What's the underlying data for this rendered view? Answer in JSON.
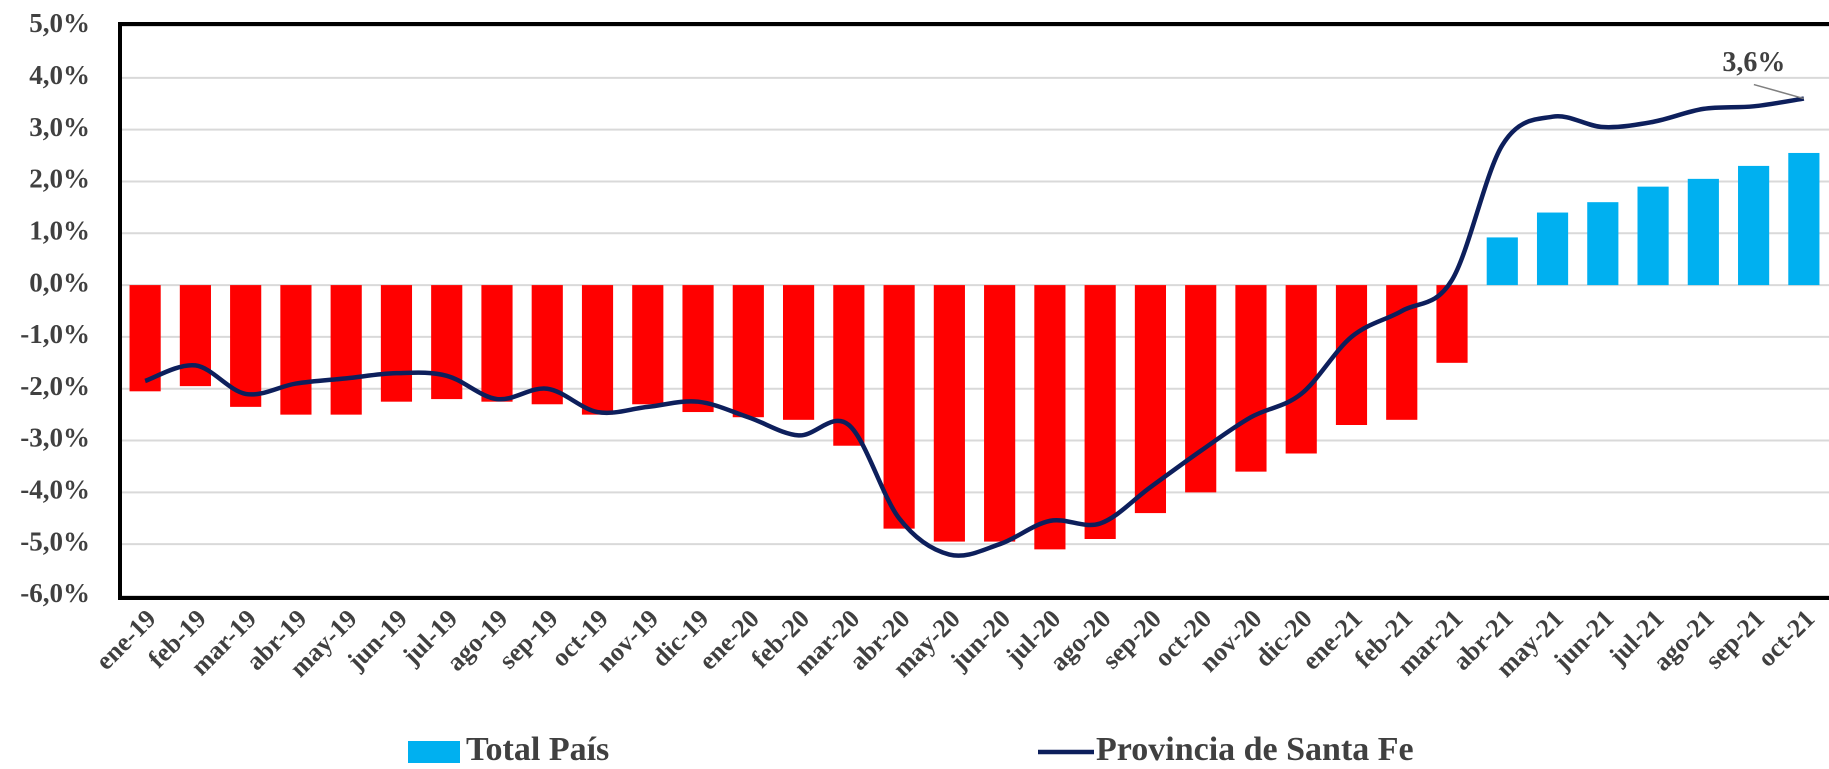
{
  "chart_data": {
    "type": "bar_line",
    "categories": [
      "ene-19",
      "feb-19",
      "mar-19",
      "abr-19",
      "may-19",
      "jun-19",
      "jul-19",
      "ago-19",
      "sep-19",
      "oct-19",
      "nov-19",
      "dic-19",
      "ene-20",
      "feb-20",
      "mar-20",
      "abr-20",
      "may-20",
      "jun-20",
      "jul-20",
      "ago-20",
      "sep-20",
      "oct-20",
      "nov-20",
      "dic-20",
      "ene-21",
      "feb-21",
      "mar-21",
      "abr-21",
      "may-21",
      "jun-21",
      "jul-21",
      "ago-21",
      "sep-21",
      "oct-21"
    ],
    "series": [
      {
        "name": "Total País",
        "type": "bar",
        "color": "#00b0f0",
        "negative_color": "#ff0000",
        "values": [
          -2.05,
          -1.95,
          -2.35,
          -2.5,
          -2.5,
          -2.25,
          -2.2,
          -2.25,
          -2.3,
          -2.5,
          -2.3,
          -2.45,
          -2.55,
          -2.6,
          -3.1,
          -4.7,
          -4.95,
          -4.95,
          -5.1,
          -4.9,
          -4.4,
          -4.0,
          -3.6,
          -3.25,
          -2.7,
          -2.6,
          -1.5,
          0.92,
          1.4,
          1.6,
          1.9,
          2.05,
          2.3,
          2.55
        ]
      },
      {
        "name": "Provincia de Santa Fe",
        "type": "line",
        "color": "#0d1f5c",
        "values": [
          -1.85,
          -1.55,
          -2.1,
          -1.9,
          -1.8,
          -1.7,
          -1.75,
          -2.2,
          -2.0,
          -2.45,
          -2.35,
          -2.25,
          -2.55,
          -2.9,
          -2.7,
          -4.5,
          -5.2,
          -5.0,
          -4.55,
          -4.6,
          -3.9,
          -3.2,
          -2.55,
          -2.1,
          -1.0,
          -0.5,
          0.1,
          2.7,
          3.25,
          3.05,
          3.15,
          3.4,
          3.45,
          3.6
        ],
        "value_labels": [
          null,
          null,
          null,
          null,
          null,
          null,
          null,
          null,
          null,
          null,
          null,
          null,
          null,
          null,
          null,
          null,
          null,
          null,
          null,
          null,
          null,
          null,
          null,
          null,
          null,
          null,
          null,
          null,
          null,
          null,
          null,
          null,
          null,
          "3,6%"
        ]
      }
    ],
    "ylim": [
      -6,
      5
    ],
    "yticks": [
      {
        "value": -6,
        "label": "-6,0%"
      },
      {
        "value": -5,
        "label": "-5,0%"
      },
      {
        "value": -4,
        "label": "-4,0%"
      },
      {
        "value": -3,
        "label": "-3,0%"
      },
      {
        "value": -2,
        "label": "-2,0%"
      },
      {
        "value": -1,
        "label": "-1,0%"
      },
      {
        "value": 0,
        "label": "0,0%"
      },
      {
        "value": 1,
        "label": "1,0%"
      },
      {
        "value": 2,
        "label": "2,0%"
      },
      {
        "value": 3,
        "label": "3,0%"
      },
      {
        "value": 4,
        "label": "4,0%"
      },
      {
        "value": 5,
        "label": "5,0%"
      }
    ],
    "grid": true,
    "legend": "bottom"
  }
}
